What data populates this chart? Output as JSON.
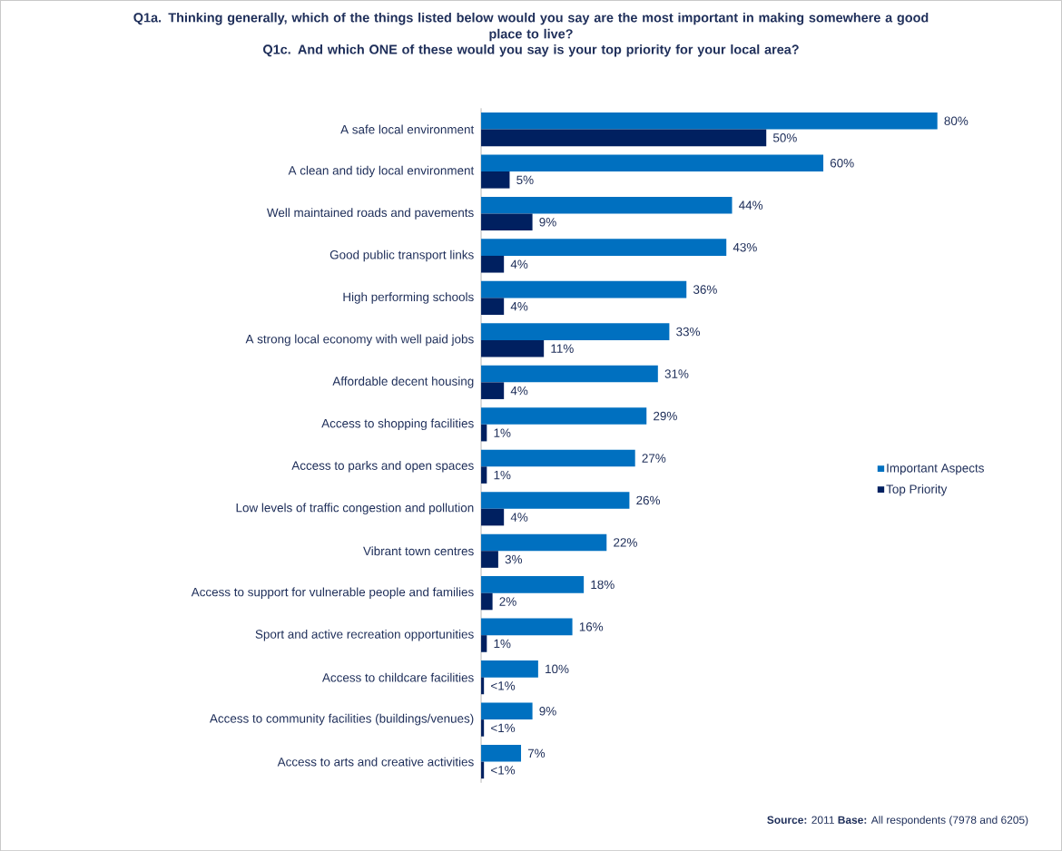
{
  "chart_data": {
    "type": "bar",
    "orientation": "horizontal",
    "title": "Q1a. Thinking generally, which of the things listed below would you say are the most important in making somewhere a good place to live?",
    "subtitle": "Q1c. And which ONE of these would you say is your top priority for your local area?",
    "categories": [
      "A safe local environment",
      "A clean and tidy local environment",
      "Well maintained roads and pavements",
      "Good public transport links",
      "High performing schools",
      "A strong local economy with well paid jobs",
      "Affordable decent housing",
      "Access to shopping facilities",
      "Access to parks and open spaces",
      "Low levels of traffic congestion and pollution",
      "Vibrant town centres",
      "Access to support for vulnerable people and families",
      "Sport and active recreation opportunities",
      "Access to childcare facilities",
      "Access to community facilities (buildings/venues)",
      "Access to arts and creative activities"
    ],
    "series": [
      {
        "name": "Important Aspects",
        "color": "#0070c0",
        "values": [
          80,
          60,
          44,
          43,
          36,
          33,
          31,
          29,
          27,
          26,
          22,
          18,
          16,
          10,
          9,
          7
        ],
        "value_labels": [
          "80%",
          "60%",
          "44%",
          "43%",
          "36%",
          "33%",
          "31%",
          "29%",
          "27%",
          "26%",
          "22%",
          "18%",
          "16%",
          "10%",
          "9%",
          "7%"
        ]
      },
      {
        "name": "Top Priority",
        "color": "#002060",
        "values": [
          50,
          5,
          9,
          4,
          4,
          11,
          4,
          1,
          1,
          4,
          3,
          2,
          1,
          0.5,
          0.5,
          0.5
        ],
        "value_labels": [
          "50%",
          "5%",
          "9%",
          "4%",
          "4%",
          "11%",
          "4%",
          "1%",
          "1%",
          "4%",
          "3%",
          "2%",
          "1%",
          "<1%",
          "<1%",
          "<1%"
        ]
      }
    ],
    "legend": "right",
    "annotations": [
      "**Source:** 2011  **Base:** All respondents (7978 and 6205)"
    ]
  }
}
